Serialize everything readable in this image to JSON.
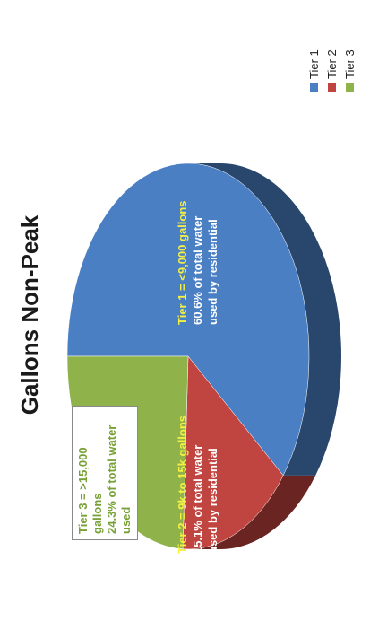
{
  "chart_data": {
    "type": "pie",
    "title": "Gallons Non-Peak",
    "categories": [
      "Tier 1",
      "Tier 2",
      "Tier 3"
    ],
    "values": [
      60.6,
      15.1,
      24.3
    ],
    "colors": [
      "#4a7fc4",
      "#c0443f",
      "#8fb34a"
    ],
    "legend_placement": "top-right",
    "legend": [
      "Tier 1",
      "Tier 2",
      "Tier 3"
    ],
    "annotations": {
      "tier1": {
        "line1": "Tier 1 = <9,000 gallons",
        "line2": "60.6% of total water",
        "line3": "used by residential"
      },
      "tier2": {
        "line1": "Tier 2 = 9k to 15k gallons",
        "line2": "15.1% of total water",
        "line3": "used by residential"
      },
      "tier3": {
        "line1": "Tier 3 = >15,000 gallons",
        "line2": "24.3% of total water used"
      }
    }
  }
}
